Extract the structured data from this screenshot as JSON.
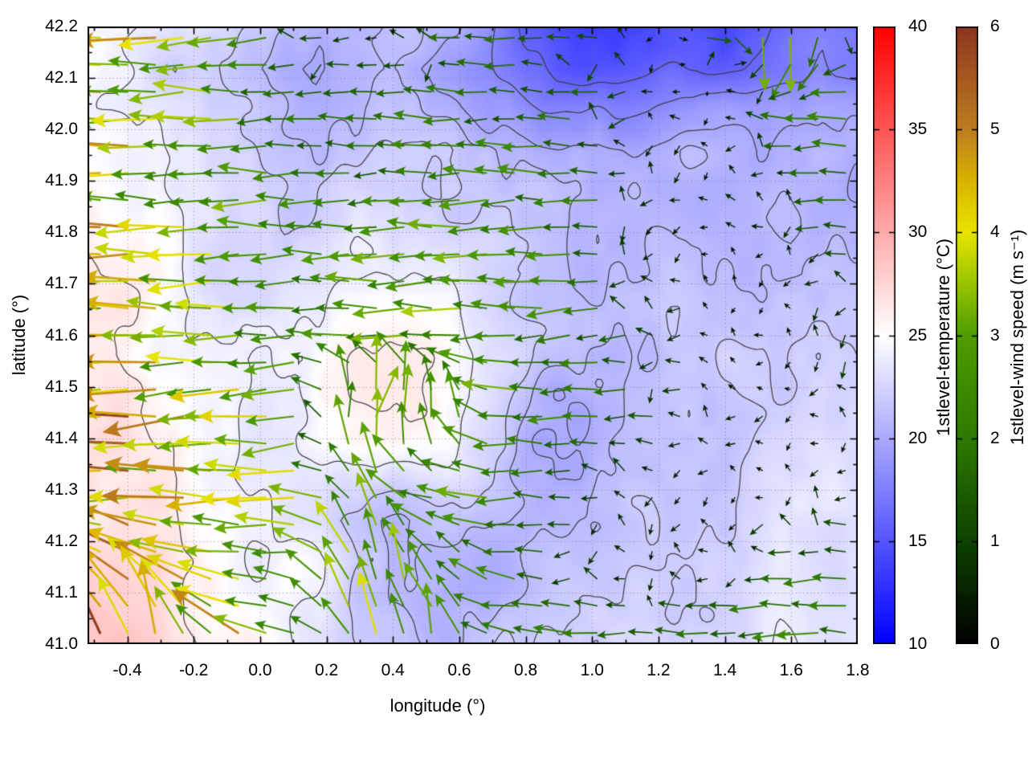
{
  "chart_data": {
    "type": "heatmap",
    "subtype": "temperature-heatmap-with-contours-and-wind-vector-field",
    "title": "",
    "xlabel": "longitude (°)",
    "ylabel": "latitude (°)",
    "xlim": [
      -0.52,
      1.8
    ],
    "ylim": [
      41.0,
      42.2
    ],
    "grid": true,
    "x_ticks": [
      {
        "v": -0.4,
        "label": "-0.4"
      },
      {
        "v": -0.2,
        "label": "-0.2"
      },
      {
        "v": 0.0,
        "label": "0.0"
      },
      {
        "v": 0.2,
        "label": "0.2"
      },
      {
        "v": 0.4,
        "label": "0.4"
      },
      {
        "v": 0.6,
        "label": "0.6"
      },
      {
        "v": 0.8,
        "label": "0.8"
      },
      {
        "v": 1.0,
        "label": "1.0"
      },
      {
        "v": 1.2,
        "label": "1.2"
      },
      {
        "v": 1.4,
        "label": "1.4"
      },
      {
        "v": 1.6,
        "label": "1.6"
      },
      {
        "v": 1.8,
        "label": "1.8"
      }
    ],
    "y_ticks": [
      {
        "v": 41.0,
        "label": "41.0"
      },
      {
        "v": 41.1,
        "label": "41.1"
      },
      {
        "v": 41.2,
        "label": "41.2"
      },
      {
        "v": 41.3,
        "label": "41.3"
      },
      {
        "v": 41.4,
        "label": "41.4"
      },
      {
        "v": 41.5,
        "label": "41.5"
      },
      {
        "v": 41.6,
        "label": "41.6"
      },
      {
        "v": 41.7,
        "label": "41.7"
      },
      {
        "v": 41.8,
        "label": "41.8"
      },
      {
        "v": 41.9,
        "label": "41.9"
      },
      {
        "v": 42.0,
        "label": "42.0"
      },
      {
        "v": 42.1,
        "label": "42.1"
      },
      {
        "v": 42.2,
        "label": "42.2"
      }
    ],
    "x_minor_tick_step": 0.1,
    "y_minor_tick_step": 0.05,
    "colorbars": [
      {
        "id": "temperature",
        "label": "1stlevel-temperature (°C)",
        "range": [
          10,
          40
        ],
        "ticks": [
          {
            "v": 10,
            "label": "10"
          },
          {
            "v": 15,
            "label": "15"
          },
          {
            "v": 20,
            "label": "20"
          },
          {
            "v": 25,
            "label": "25"
          },
          {
            "v": 30,
            "label": "30"
          },
          {
            "v": 35,
            "label": "35"
          },
          {
            "v": 40,
            "label": "40"
          }
        ],
        "stops": [
          [
            10,
            "#0000ff"
          ],
          [
            17.5,
            "#8080ff"
          ],
          [
            25,
            "#ffffff"
          ],
          [
            32.5,
            "#ff8080"
          ],
          [
            40,
            "#ff0000"
          ]
        ]
      },
      {
        "id": "wind_speed",
        "label": "1stlevel-wind speed (m s⁻¹)",
        "range": [
          0,
          6
        ],
        "ticks": [
          {
            "v": 0,
            "label": "0"
          },
          {
            "v": 1,
            "label": "1"
          },
          {
            "v": 2,
            "label": "2"
          },
          {
            "v": 3,
            "label": "3"
          },
          {
            "v": 4,
            "label": "4"
          },
          {
            "v": 5,
            "label": "5"
          },
          {
            "v": 6,
            "label": "6"
          }
        ],
        "stops": [
          [
            0,
            "#000000"
          ],
          [
            1,
            "#0d4200"
          ],
          [
            2,
            "#2d7a00"
          ],
          [
            3,
            "#4f9c00"
          ],
          [
            3.6,
            "#a8cc00"
          ],
          [
            4,
            "#e8e400"
          ],
          [
            4.5,
            "#d8b400"
          ],
          [
            5,
            "#bd7d1e"
          ],
          [
            6,
            "#8b3520"
          ]
        ]
      }
    ],
    "contour_levels": [
      16,
      18,
      20,
      21,
      22,
      24,
      26
    ],
    "contour_color": "#3c3c3c",
    "temperature_field": {
      "units": "degC",
      "lon_range": [
        -0.52,
        1.8
      ],
      "lat_range": [
        41.0,
        42.2
      ],
      "cols": 24,
      "rows": 16,
      "row_order": "north-to-south",
      "values": [
        [
          24.5,
          24.8,
          24.5,
          23.5,
          22.5,
          22.0,
          21.5,
          21.0,
          20.5,
          21.0,
          21.0,
          20.5,
          18.5,
          16.0,
          14.5,
          14.0,
          14.0,
          14.5,
          15.0,
          14.5,
          15.5,
          17.0,
          18.0,
          17.5
        ],
        [
          25.0,
          24.5,
          23.5,
          22.5,
          22.0,
          21.5,
          21.0,
          20.5,
          20.0,
          20.5,
          20.0,
          19.5,
          18.5,
          17.5,
          15.5,
          15.0,
          15.5,
          16.0,
          15.5,
          16.0,
          17.0,
          18.0,
          18.5,
          18.0
        ],
        [
          24.5,
          24.0,
          23.0,
          22.5,
          22.0,
          22.0,
          21.5,
          21.0,
          21.0,
          21.5,
          20.5,
          20.0,
          19.0,
          19.0,
          18.0,
          17.5,
          18.0,
          18.5,
          18.5,
          19.0,
          19.0,
          19.5,
          19.5,
          19.0
        ],
        [
          25.0,
          24.5,
          23.5,
          23.0,
          22.5,
          22.0,
          22.0,
          21.5,
          21.5,
          22.0,
          22.0,
          21.5,
          21.0,
          20.5,
          20.0,
          19.5,
          20.0,
          20.0,
          20.5,
          20.0,
          20.0,
          20.5,
          20.5,
          20.0
        ],
        [
          25.5,
          25.0,
          24.0,
          23.0,
          22.5,
          22.5,
          22.0,
          22.0,
          22.5,
          22.5,
          22.5,
          22.0,
          21.5,
          21.0,
          20.5,
          20.0,
          20.5,
          20.5,
          20.5,
          21.0,
          20.5,
          21.0,
          21.0,
          20.5
        ],
        [
          26.0,
          25.5,
          24.5,
          23.5,
          23.0,
          22.5,
          22.5,
          22.5,
          23.0,
          23.0,
          23.0,
          22.5,
          22.0,
          21.0,
          20.5,
          20.5,
          20.5,
          21.0,
          21.0,
          21.0,
          21.0,
          21.5,
          21.5,
          21.0
        ],
        [
          26.0,
          25.5,
          25.0,
          24.0,
          23.0,
          23.0,
          23.0,
          23.5,
          23.5,
          24.0,
          23.5,
          23.0,
          22.0,
          21.5,
          21.0,
          20.5,
          21.0,
          21.0,
          21.0,
          21.5,
          21.0,
          21.5,
          22.0,
          21.5
        ],
        [
          26.5,
          26.0,
          25.0,
          24.0,
          23.5,
          23.0,
          23.5,
          24.0,
          24.5,
          25.0,
          24.5,
          23.5,
          22.5,
          21.5,
          21.0,
          21.0,
          21.0,
          21.5,
          21.0,
          21.0,
          21.5,
          22.0,
          22.0,
          22.0
        ],
        [
          26.0,
          25.5,
          25.0,
          24.0,
          23.5,
          23.5,
          24.0,
          25.0,
          25.5,
          26.0,
          25.5,
          24.5,
          23.0,
          22.0,
          21.0,
          20.5,
          21.0,
          21.0,
          21.0,
          21.5,
          21.5,
          22.0,
          22.0,
          22.0
        ],
        [
          26.5,
          26.0,
          25.5,
          24.5,
          24.0,
          23.5,
          24.0,
          25.5,
          26.0,
          26.0,
          25.5,
          24.5,
          23.0,
          21.5,
          20.5,
          20.5,
          21.0,
          21.0,
          21.5,
          21.5,
          22.0,
          22.0,
          22.5,
          22.0
        ],
        [
          27.0,
          26.5,
          25.5,
          24.5,
          24.0,
          23.5,
          24.0,
          25.0,
          25.5,
          25.5,
          25.0,
          24.0,
          22.5,
          21.0,
          20.5,
          20.5,
          21.0,
          21.5,
          21.5,
          22.0,
          22.0,
          22.5,
          22.5,
          22.5
        ],
        [
          27.0,
          26.5,
          26.0,
          25.0,
          24.0,
          23.5,
          23.5,
          23.5,
          23.5,
          23.0,
          23.0,
          22.5,
          22.0,
          21.0,
          20.5,
          21.0,
          21.5,
          21.5,
          22.0,
          22.0,
          22.5,
          22.5,
          23.0,
          23.0
        ],
        [
          26.5,
          27.0,
          26.0,
          25.0,
          24.5,
          24.0,
          23.5,
          23.0,
          22.0,
          21.5,
          21.0,
          21.0,
          21.0,
          21.0,
          21.0,
          21.5,
          21.5,
          22.0,
          22.0,
          22.5,
          22.5,
          23.0,
          23.0,
          23.0
        ],
        [
          27.5,
          27.0,
          26.5,
          25.5,
          25.0,
          24.5,
          24.5,
          24.0,
          22.5,
          21.0,
          20.5,
          20.5,
          20.5,
          20.5,
          21.5,
          21.5,
          22.0,
          22.0,
          22.5,
          22.5,
          23.0,
          23.0,
          23.0,
          23.5
        ],
        [
          28.0,
          27.5,
          27.0,
          26.0,
          25.5,
          25.0,
          24.5,
          23.5,
          22.0,
          20.5,
          20.0,
          20.5,
          20.5,
          21.0,
          21.5,
          22.0,
          22.0,
          22.5,
          22.5,
          23.0,
          23.0,
          23.0,
          23.5,
          23.5
        ],
        [
          29.0,
          28.5,
          27.5,
          26.5,
          26.0,
          25.5,
          25.0,
          24.0,
          22.5,
          21.5,
          21.0,
          21.0,
          21.5,
          21.5,
          22.0,
          22.0,
          22.5,
          22.5,
          23.0,
          23.0,
          23.0,
          23.5,
          23.5,
          23.5
        ]
      ]
    },
    "wind_field": {
      "units": "m s-1",
      "direction_convention": "deg, 0=east, 90=north; arrows point toward direction",
      "lon_range": [
        -0.52,
        1.8
      ],
      "lat_range": [
        41.0,
        42.2
      ],
      "cols": 12,
      "rows": 9,
      "row_order": "north-to-south",
      "speed": [
        [
          4.5,
          4.0,
          2.8,
          1.0,
          0.6,
          1.2,
          1.6,
          1.2,
          0.5,
          2.2,
          4.5,
          0.5
        ],
        [
          4.2,
          3.6,
          2.8,
          1.6,
          1.4,
          1.8,
          1.6,
          1.5,
          0.5,
          0.4,
          1.6,
          2.0
        ],
        [
          4.0,
          3.4,
          3.0,
          2.4,
          1.8,
          2.2,
          2.4,
          2.0,
          0.6,
          0.4,
          0.8,
          2.2
        ],
        [
          4.2,
          3.8,
          3.0,
          2.6,
          2.6,
          3.0,
          2.6,
          2.2,
          0.5,
          0.3,
          0.4,
          1.2
        ],
        [
          4.4,
          4.0,
          3.2,
          2.4,
          2.6,
          2.8,
          2.4,
          2.0,
          0.8,
          0.4,
          0.3,
          1.0
        ],
        [
          4.6,
          4.4,
          3.6,
          3.0,
          4.8,
          3.4,
          2.6,
          2.2,
          1.2,
          0.5,
          0.3,
          0.5
        ],
        [
          4.8,
          4.2,
          3.8,
          3.2,
          2.8,
          2.6,
          2.4,
          1.0,
          0.5,
          0.4,
          0.3,
          0.5
        ],
        [
          4.5,
          4.2,
          3.6,
          3.0,
          3.8,
          2.8,
          2.2,
          0.8,
          0.4,
          0.5,
          1.5,
          1.8
        ],
        [
          5.0,
          5.4,
          4.0,
          3.4,
          3.0,
          2.6,
          2.4,
          2.0,
          1.2,
          1.8,
          2.0,
          2.2
        ]
      ],
      "direction_deg": [
        [
          180,
          180,
          183,
          180,
          178,
          182,
          178,
          175,
          200,
          0,
          270,
          180
        ],
        [
          180,
          180,
          180,
          180,
          180,
          180,
          180,
          180,
          190,
          180,
          180,
          180
        ],
        [
          180,
          180,
          180,
          180,
          180,
          180,
          180,
          180,
          180,
          180,
          180,
          180
        ],
        [
          180,
          180,
          180,
          180,
          180,
          180,
          180,
          180,
          180,
          180,
          180,
          180
        ],
        [
          180,
          182,
          180,
          180,
          180,
          180,
          180,
          185,
          180,
          180,
          180,
          180
        ],
        [
          180,
          185,
          180,
          190,
          70,
          88,
          172,
          180,
          180,
          180,
          180,
          180
        ],
        [
          180,
          180,
          180,
          180,
          120,
          170,
          180,
          180,
          180,
          180,
          180,
          180
        ],
        [
          140,
          150,
          170,
          175,
          95,
          130,
          170,
          180,
          180,
          180,
          180,
          180
        ],
        [
          120,
          95,
          150,
          160,
          110,
          100,
          170,
          175,
          180,
          180,
          180,
          180
        ]
      ]
    }
  }
}
